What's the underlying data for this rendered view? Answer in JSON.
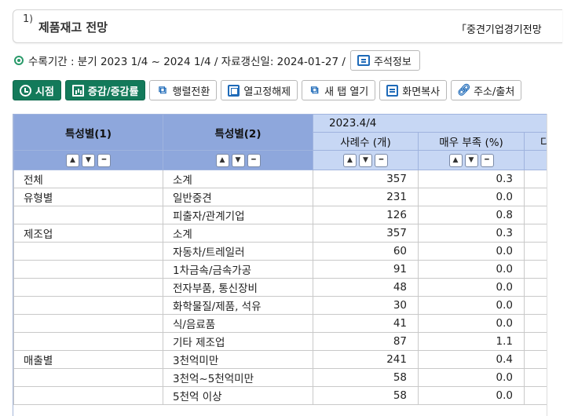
{
  "title": {
    "number": "1",
    "paren": ")",
    "text": "제품재고 전망",
    "source": "「중견기업경기전망"
  },
  "meta": {
    "text": "수록기간 : 분기 2023 1/4 ~ 2024 1/4 / 자료갱신일: 2024-01-27 /",
    "note_label": "주석정보"
  },
  "toolbar": {
    "timepoint": "시점",
    "change": "증감/증감률",
    "pivot": "행렬전환",
    "unfreeze": "열고정해제",
    "new_tab": "새 탭 열기",
    "copy": "화면복사",
    "address": "주소/출처"
  },
  "table": {
    "header": {
      "col1": "특성별(1)",
      "col2": "특성별(2)",
      "period": "2023.4/4",
      "measure1": "사례수 (개)",
      "measure2": "매우 부족 (%)",
      "measure3": "다"
    },
    "rows": [
      {
        "c1": "전체",
        "c2": "소계",
        "v1": "357",
        "v2": "0.3"
      },
      {
        "c1": "유형별",
        "c2": "일반중견",
        "v1": "231",
        "v2": "0.0"
      },
      {
        "c1": "",
        "c2": "피출자/관계기업",
        "v1": "126",
        "v2": "0.8"
      },
      {
        "c1": "제조업",
        "c2": "소계",
        "v1": "357",
        "v2": "0.3"
      },
      {
        "c1": "",
        "c2": "자동차/트레일러",
        "v1": "60",
        "v2": "0.0"
      },
      {
        "c1": "",
        "c2": "1차금속/금속가공",
        "v1": "91",
        "v2": "0.0"
      },
      {
        "c1": "",
        "c2": "전자부품, 통신장비",
        "v1": "48",
        "v2": "0.0"
      },
      {
        "c1": "",
        "c2": "화학물질/제품, 석유",
        "v1": "30",
        "v2": "0.0"
      },
      {
        "c1": "",
        "c2": "식/음료품",
        "v1": "41",
        "v2": "0.0"
      },
      {
        "c1": "",
        "c2": "기타 제조업",
        "v1": "87",
        "v2": "1.1"
      },
      {
        "c1": "매출별",
        "c2": "3천억미만",
        "v1": "241",
        "v2": "0.4"
      },
      {
        "c1": "",
        "c2": "3천억~5천억미만",
        "v1": "58",
        "v2": "0.0"
      },
      {
        "c1": "",
        "c2": "5천억 이상",
        "v1": "58",
        "v2": "0.0"
      }
    ]
  }
}
